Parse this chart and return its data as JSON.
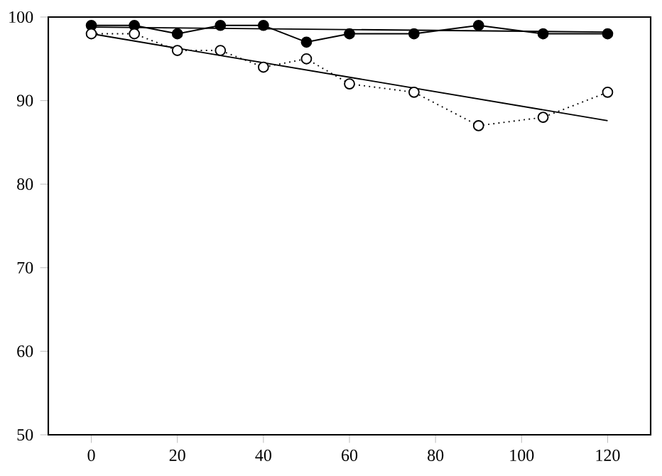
{
  "chart_data": {
    "type": "line",
    "xlim": [
      -10,
      130
    ],
    "ylim": [
      50,
      100
    ],
    "xticks": [
      0,
      20,
      40,
      60,
      80,
      100,
      120
    ],
    "yticks": [
      50,
      60,
      70,
      80,
      90,
      100
    ],
    "grid": false,
    "series": [
      {
        "color": "#000000",
        "marker": "circle",
        "line_style": "solid",
        "x": [
          0,
          10,
          20,
          30,
          40,
          50,
          60,
          75,
          90,
          105,
          120
        ],
        "values": [
          99,
          99,
          98,
          99,
          99,
          97,
          98,
          98,
          99,
          98,
          98
        ]
      },
      {
        "color": "#000000",
        "marker": "circle",
        "line_style": "dotted",
        "x": [
          0,
          10,
          20,
          30,
          40,
          50,
          60,
          75,
          90,
          105,
          120
        ],
        "values": [
          98,
          98,
          96,
          96,
          94,
          95,
          92,
          91,
          87,
          88,
          91
        ]
      },
      {
        "color": "#000000",
        "marker": "none",
        "line_style": "solid",
        "x": [
          0,
          120
        ],
        "values": [
          98.8,
          98.2
        ]
      },
      {
        "color": "#000000",
        "marker": "none",
        "line_style": "solid",
        "x": [
          0,
          120
        ],
        "values": [
          98,
          87.6
        ]
      }
    ]
  }
}
